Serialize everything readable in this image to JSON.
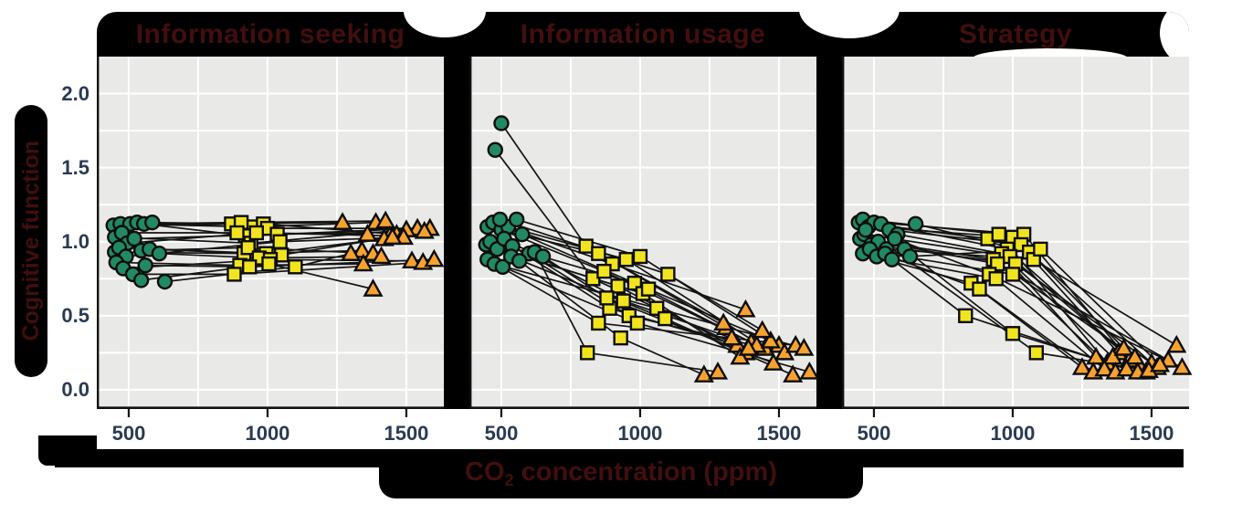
{
  "figure": {
    "ylabel": "Cognitive function",
    "xlabel_pre": "CO",
    "xlabel_sub": "2",
    "xlabel_post": " concentration (ppm)"
  },
  "chart_data": {
    "type": "scatter",
    "description": "Paired within-subject cognitive function scores at three CO2 exposure levels (green circle ~500 ppm, yellow square ~1000 ppm, orange triangle ~1500 ppm), lines connect the same subject",
    "xlabel": "CO2 concentration (ppm)",
    "ylabel": "Cognitive function",
    "xticks": [
      500,
      1000,
      1500
    ],
    "yticks": [
      0.0,
      0.5,
      1.0,
      1.5,
      2.0
    ],
    "xlim": [
      385,
      1635
    ],
    "ylim": [
      -0.13,
      2.25
    ],
    "grid": {
      "x_lines": [
        500,
        750,
        1000,
        1250,
        1500
      ],
      "y_step": 0.25,
      "y_min": 0,
      "y_max": 2,
      "color": "#ffffff"
    },
    "markers": [
      {
        "shape": "circle",
        "fill": "#218a62"
      },
      {
        "shape": "square",
        "fill": "#f1e41f"
      },
      {
        "shape": "triangle",
        "fill": "#f7a22e"
      }
    ],
    "line_color": "#141414",
    "panel_bg": "#e9e9e7",
    "panels": [
      {
        "title": "Information seeking",
        "subjects": [
          [
            [
              445,
              1.11
            ],
            [
              870,
              1.12
            ],
            [
              1270,
              1.13
            ]
          ],
          [
            [
              470,
              1.12
            ],
            [
              950,
              1.1
            ],
            [
              1390,
              1.13
            ]
          ],
          [
            [
              505,
              1.12
            ],
            [
              905,
              1.13
            ],
            [
              1425,
              1.14
            ]
          ],
          [
            [
              530,
              1.13
            ],
            [
              985,
              1.12
            ],
            [
              1465,
              1.05
            ]
          ],
          [
            [
              555,
              1.12
            ],
            [
              920,
              1.04
            ],
            [
              1540,
              1.09
            ]
          ],
          [
            [
              585,
              1.13
            ],
            [
              1000,
              1.09
            ],
            [
              1585,
              1.09
            ]
          ],
          [
            [
              450,
              1.03
            ],
            [
              940,
              0.99
            ],
            [
              1500,
              1.08
            ]
          ],
          [
            [
              475,
              1.06
            ],
            [
              890,
              1.06
            ],
            [
              1360,
              1.05
            ]
          ],
          [
            [
              495,
              0.99
            ],
            [
              960,
              1.06
            ],
            [
              1440,
              1.04
            ]
          ],
          [
            [
              520,
              1.02
            ],
            [
              1035,
              1.05
            ],
            [
              1565,
              1.07
            ]
          ],
          [
            [
              450,
              0.93
            ],
            [
              915,
              0.92
            ],
            [
              1340,
              0.94
            ]
          ],
          [
            [
              465,
              0.96
            ],
            [
              995,
              0.92
            ],
            [
              1420,
              1.02
            ]
          ],
          [
            [
              490,
              0.9
            ],
            [
              1045,
              1.0
            ],
            [
              1490,
              1.03
            ]
          ],
          [
            [
              545,
              0.94
            ],
            [
              930,
              0.96
            ],
            [
              1380,
              0.92
            ]
          ],
          [
            [
              575,
              0.95
            ],
            [
              1050,
              0.91
            ],
            [
              1450,
              1.03
            ]
          ],
          [
            [
              610,
              0.92
            ],
            [
              970,
              0.89
            ],
            [
              1410,
              0.9
            ]
          ],
          [
            [
              455,
              0.86
            ],
            [
              900,
              0.84
            ],
            [
              1345,
              0.85
            ]
          ],
          [
            [
              480,
              0.82
            ],
            [
              1010,
              0.88
            ],
            [
              1520,
              0.87
            ]
          ],
          [
            [
              515,
              0.78
            ],
            [
              880,
              0.78
            ],
            [
              1560,
              0.86
            ]
          ],
          [
            [
              560,
              0.84
            ],
            [
              935,
              0.83
            ],
            [
              1600,
              0.88
            ]
          ],
          [
            [
              545,
              0.74
            ],
            [
              1005,
              0.85
            ],
            [
              1380,
              0.68
            ]
          ],
          [
            [
              630,
              0.73
            ],
            [
              1100,
              0.83
            ],
            [
              1300,
              0.92
            ]
          ]
        ]
      },
      {
        "title": "Information usage",
        "subjects": [
          [
            [
              500,
              1.8
            ],
            [
              805,
              0.97
            ],
            [
              1310,
              0.42
            ]
          ],
          [
            [
              478,
              1.62
            ],
            [
              830,
              0.75
            ],
            [
              1350,
              0.3
            ]
          ],
          [
            [
              450,
              1.1
            ],
            [
              850,
              0.92
            ],
            [
              1300,
              0.45
            ]
          ],
          [
            [
              470,
              1.13
            ],
            [
              900,
              0.85
            ],
            [
              1380,
              0.54
            ]
          ],
          [
            [
              500,
              1.08
            ],
            [
              870,
              0.8
            ],
            [
              1400,
              0.32
            ]
          ],
          [
            [
              525,
              1.1
            ],
            [
              950,
              0.88
            ],
            [
              1450,
              0.28
            ]
          ],
          [
            [
              555,
              1.15
            ],
            [
              1000,
              0.9
            ],
            [
              1500,
              0.3
            ]
          ],
          [
            [
              445,
              0.98
            ],
            [
              920,
              0.7
            ],
            [
              1380,
              0.25
            ]
          ],
          [
            [
              460,
              1.0
            ],
            [
              980,
              0.72
            ],
            [
              1420,
              0.3
            ]
          ],
          [
            [
              485,
              0.95
            ],
            [
              1010,
              0.65
            ],
            [
              1360,
              0.22
            ]
          ],
          [
            [
              510,
              1.02
            ],
            [
              940,
              0.6
            ],
            [
              1330,
              0.35
            ]
          ],
          [
            [
              540,
              0.97
            ],
            [
              890,
              0.55
            ],
            [
              1390,
              0.28
            ]
          ],
          [
            [
              575,
              1.05
            ],
            [
              1030,
              0.68
            ],
            [
              1470,
              0.33
            ]
          ],
          [
            [
              600,
              0.92
            ],
            [
              960,
              0.5
            ],
            [
              1520,
              0.25
            ]
          ],
          [
            [
              450,
              0.88
            ],
            [
              850,
              0.45
            ],
            [
              1560,
              0.3
            ]
          ],
          [
            [
              475,
              0.85
            ],
            [
              1060,
              0.55
            ],
            [
              1590,
              0.28
            ]
          ],
          [
            [
              505,
              0.83
            ],
            [
              990,
              0.45
            ],
            [
              1610,
              0.12
            ]
          ],
          [
            [
              535,
              0.9
            ],
            [
              1090,
              0.48
            ],
            [
              1550,
              0.1
            ]
          ],
          [
            [
              565,
              0.87
            ],
            [
              930,
              0.35
            ],
            [
              1230,
              0.1
            ]
          ],
          [
            [
              620,
              0.93
            ],
            [
              810,
              0.25
            ],
            [
              1280,
              0.12
            ]
          ],
          [
            [
              495,
              1.15
            ],
            [
              1100,
              0.78
            ],
            [
              1440,
              0.4
            ]
          ],
          [
            [
              650,
              0.9
            ],
            [
              880,
              0.62
            ],
            [
              1480,
              0.18
            ]
          ]
        ]
      },
      {
        "title": "Strategy",
        "subjects": [
          [
            [
              445,
              1.13
            ],
            [
              910,
              1.02
            ],
            [
              1300,
              0.22
            ]
          ],
          [
            [
              460,
              1.15
            ],
            [
              950,
              1.05
            ],
            [
              1340,
              0.18
            ]
          ],
          [
            [
              480,
              1.1
            ],
            [
              1000,
              1.03
            ],
            [
              1380,
              0.25
            ]
          ],
          [
            [
              500,
              1.13
            ],
            [
              1040,
              1.05
            ],
            [
              1420,
              0.2
            ]
          ],
          [
            [
              525,
              1.12
            ],
            [
              980,
              0.95
            ],
            [
              1460,
              0.15
            ]
          ],
          [
            [
              555,
              1.08
            ],
            [
              1030,
              0.98
            ],
            [
              1500,
              0.18
            ]
          ],
          [
            [
              585,
              1.05
            ],
            [
              960,
              0.92
            ],
            [
              1360,
              0.22
            ]
          ],
          [
            [
              650,
              1.12
            ],
            [
              1060,
              0.93
            ],
            [
              1400,
              0.28
            ]
          ],
          [
            [
              450,
              1.02
            ],
            [
              930,
              0.88
            ],
            [
              1440,
              0.22
            ]
          ],
          [
            [
              465,
              1.05
            ],
            [
              990,
              0.9
            ],
            [
              1480,
              0.12
            ]
          ],
          [
            [
              490,
              0.98
            ],
            [
              1010,
              0.85
            ],
            [
              1520,
              0.15
            ]
          ],
          [
            [
              515,
              1.0
            ],
            [
              945,
              0.85
            ],
            [
              1560,
              0.2
            ]
          ],
          [
            [
              545,
              0.95
            ],
            [
              1075,
              0.88
            ],
            [
              1590,
              0.3
            ]
          ],
          [
            [
              575,
              1.02
            ],
            [
              915,
              0.78
            ],
            [
              1610,
              0.15
            ]
          ],
          [
            [
              460,
              0.92
            ],
            [
              850,
              0.72
            ],
            [
              1250,
              0.15
            ]
          ],
          [
            [
              485,
              0.95
            ],
            [
              880,
              0.68
            ],
            [
              1290,
              0.12
            ]
          ],
          [
            [
              510,
              0.9
            ],
            [
              940,
              0.75
            ],
            [
              1330,
              0.14
            ]
          ],
          [
            [
              540,
              0.92
            ],
            [
              1000,
              0.78
            ],
            [
              1370,
              0.12
            ]
          ],
          [
            [
              565,
              0.88
            ],
            [
              830,
              0.5
            ],
            [
              1410,
              0.14
            ]
          ],
          [
            [
              610,
              0.95
            ],
            [
              1000,
              0.38
            ],
            [
              1450,
              0.12
            ]
          ],
          [
            [
              470,
              1.08
            ],
            [
              1085,
              0.25
            ],
            [
              1490,
              0.13
            ]
          ],
          [
            [
              630,
              0.9
            ],
            [
              1100,
              0.95
            ],
            [
              1530,
              0.17
            ]
          ]
        ]
      }
    ]
  }
}
